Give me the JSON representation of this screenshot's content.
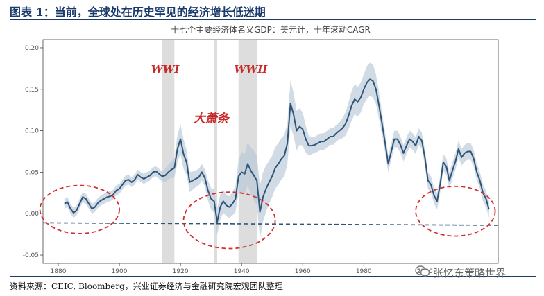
{
  "figure": {
    "title": "图表 1：当前，全球处在历史罕见的经济增长低迷期",
    "source": "资料来源：CEIC, Bloomberg，兴业证券经济与金融研究院宏观团队整理",
    "watermark": "张忆东策略世界",
    "watermark_icon": "wechat-icon"
  },
  "chart_data": {
    "type": "line",
    "title": "十七个主要经济体名义GDP：美元计，十年滚动CAGR",
    "xlabel": "",
    "ylabel": "",
    "xlim": [
      1875,
      2024
    ],
    "ylim": [
      -0.06,
      0.21
    ],
    "xticks": [
      "1880",
      "1900",
      "1920",
      "1940",
      "1960",
      "1980",
      "2000"
    ],
    "yticks": [
      "0.20",
      "0.15",
      "0.10",
      "0.05",
      "0.00",
      "-0.05"
    ],
    "grid": false,
    "series": [
      {
        "color": "#2e5578",
        "x": [
          1882,
          1883,
          1884,
          1885,
          1886,
          1887,
          1888,
          1889,
          1890,
          1891,
          1892,
          1893,
          1894,
          1895,
          1896,
          1897,
          1898,
          1899,
          1900,
          1901,
          1902,
          1903,
          1904,
          1905,
          1906,
          1907,
          1908,
          1909,
          1910,
          1911,
          1912,
          1913,
          1914,
          1915,
          1916,
          1917,
          1918,
          1919,
          1920,
          1921,
          1922,
          1923,
          1924,
          1925,
          1926,
          1927,
          1928,
          1929,
          1930,
          1931,
          1932,
          1933,
          1934,
          1935,
          1936,
          1937,
          1938,
          1939,
          1940,
          1941,
          1942,
          1943,
          1944,
          1945,
          1946,
          1947,
          1948,
          1949,
          1950,
          1951,
          1952,
          1953,
          1954,
          1955,
          1956,
          1957,
          1958,
          1959,
          1960,
          1961,
          1962,
          1963,
          1964,
          1965,
          1966,
          1967,
          1968,
          1969,
          1970,
          1971,
          1972,
          1973,
          1974,
          1975,
          1976,
          1977,
          1978,
          1979,
          1980,
          1981,
          1982,
          1983,
          1984,
          1985,
          1986,
          1987,
          1988,
          1989,
          1990,
          1991,
          1992,
          1993,
          1994,
          1995,
          1996,
          1997,
          1998,
          1999,
          2000,
          2001,
          2002,
          2003,
          2004,
          2005,
          2006,
          2007,
          2008,
          2009,
          2010,
          2011,
          2012,
          2013,
          2014,
          2015,
          2016,
          2017,
          2018,
          2019,
          2020,
          2021
        ],
        "y": [
          0.012,
          0.014,
          0.006,
          0.001,
          0.004,
          0.012,
          0.02,
          0.018,
          0.012,
          0.006,
          0.008,
          0.013,
          0.016,
          0.018,
          0.02,
          0.021,
          0.023,
          0.028,
          0.03,
          0.035,
          0.04,
          0.041,
          0.038,
          0.041,
          0.047,
          0.044,
          0.042,
          0.044,
          0.046,
          0.05,
          0.051,
          0.048,
          0.045,
          0.046,
          0.05,
          0.053,
          0.055,
          0.078,
          0.09,
          0.072,
          0.062,
          0.038,
          0.04,
          0.042,
          0.044,
          0.05,
          0.043,
          0.028,
          0.018,
          0.015,
          -0.01,
          0.008,
          0.015,
          0.01,
          0.008,
          0.012,
          0.018,
          0.045,
          0.05,
          0.048,
          0.06,
          0.052,
          0.046,
          0.04,
          0.002,
          0.02,
          0.03,
          0.038,
          0.045,
          0.055,
          0.06,
          0.066,
          0.07,
          0.085,
          0.133,
          0.12,
          0.1,
          0.105,
          0.102,
          0.09,
          0.082,
          0.082,
          0.083,
          0.085,
          0.087,
          0.087,
          0.09,
          0.093,
          0.093,
          0.097,
          0.1,
          0.103,
          0.108,
          0.118,
          0.13,
          0.138,
          0.135,
          0.14,
          0.15,
          0.158,
          0.162,
          0.16,
          0.15,
          0.13,
          0.108,
          0.085,
          0.06,
          0.075,
          0.09,
          0.09,
          0.083,
          0.073,
          0.082,
          0.09,
          0.087,
          0.082,
          0.093,
          0.088,
          0.068,
          0.04,
          0.035,
          0.022,
          0.015,
          0.035,
          0.062,
          0.057,
          0.04,
          0.052,
          0.063,
          0.078,
          0.068,
          0.073,
          0.075,
          0.075,
          0.066,
          0.05,
          0.04,
          0.025,
          0.018,
          0.005
        ],
        "band_width": [
          0.006,
          0.006,
          0.006,
          0.006,
          0.006,
          0.006,
          0.006,
          0.006,
          0.006,
          0.006,
          0.006,
          0.006,
          0.006,
          0.006,
          0.006,
          0.006,
          0.006,
          0.006,
          0.006,
          0.006,
          0.006,
          0.006,
          0.006,
          0.006,
          0.006,
          0.006,
          0.006,
          0.006,
          0.006,
          0.006,
          0.006,
          0.006,
          0.006,
          0.008,
          0.009,
          0.01,
          0.012,
          0.016,
          0.018,
          0.018,
          0.015,
          0.012,
          0.011,
          0.01,
          0.01,
          0.01,
          0.01,
          0.012,
          0.013,
          0.014,
          0.016,
          0.015,
          0.014,
          0.013,
          0.013,
          0.014,
          0.016,
          0.02,
          0.024,
          0.024,
          0.026,
          0.028,
          0.03,
          0.03,
          0.032,
          0.03,
          0.028,
          0.026,
          0.025,
          0.025,
          0.025,
          0.025,
          0.025,
          0.025,
          0.028,
          0.026,
          0.024,
          0.022,
          0.02,
          0.016,
          0.012,
          0.01,
          0.01,
          0.01,
          0.01,
          0.01,
          0.01,
          0.01,
          0.01,
          0.01,
          0.01,
          0.012,
          0.014,
          0.016,
          0.018,
          0.018,
          0.018,
          0.018,
          0.018,
          0.02,
          0.02,
          0.02,
          0.018,
          0.016,
          0.014,
          0.012,
          0.01,
          0.01,
          0.01,
          0.01,
          0.01,
          0.01,
          0.01,
          0.01,
          0.01,
          0.01,
          0.01,
          0.01,
          0.01,
          0.01,
          0.01,
          0.01,
          0.01,
          0.01,
          0.01,
          0.01,
          0.01,
          0.01,
          0.01,
          0.01,
          0.01,
          0.01,
          0.01,
          0.01,
          0.01,
          0.01,
          0.01,
          0.01,
          0.01,
          0.01
        ]
      },
      {
        "color": "#2e5578",
        "style": "dashed",
        "x": [
          1875,
          2024
        ],
        "y": [
          -0.011,
          -0.014
        ]
      }
    ],
    "shaded_periods": [
      {
        "label": "WWI",
        "start": 1914,
        "end": 1918
      },
      {
        "label": "",
        "start": 1931,
        "end": 1932
      },
      {
        "label": "WWII",
        "start": 1939,
        "end": 1945
      }
    ],
    "annotations": [
      {
        "text": "WWI",
        "x": 1915,
        "y": 0.17
      },
      {
        "text": "WWII",
        "x": 1943,
        "y": 0.17
      },
      {
        "text": "大萧条",
        "x": 1930,
        "y": 0.11
      }
    ],
    "highlight_ellipses": [
      {
        "cx": 1887,
        "cy": 0.005,
        "rx": 13,
        "ry": 0.029
      },
      {
        "cx": 1936,
        "cy": -0.008,
        "rx": 15,
        "ry": 0.034
      },
      {
        "cx": 2010,
        "cy": 0.003,
        "rx": 13,
        "ry": 0.03
      }
    ]
  }
}
